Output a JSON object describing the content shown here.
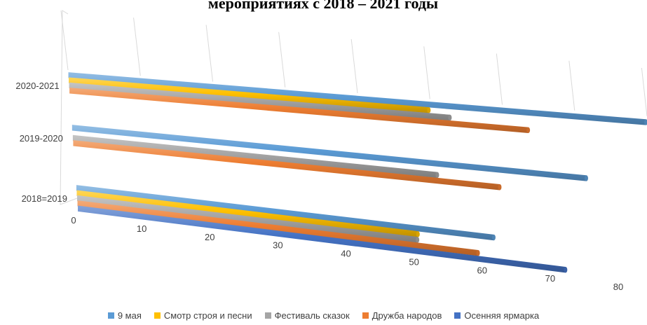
{
  "chart_data": {
    "type": "bar",
    "orientation": "horizontal",
    "title": "мероприятиях с 2018 – 2021 годы",
    "categories": [
      "2020-2021",
      "2019-2020",
      "2018=2019"
    ],
    "xlim": [
      0,
      80
    ],
    "x_ticks": [
      "0",
      "10",
      "20",
      "30",
      "40",
      "50",
      "60",
      "70",
      "80"
    ],
    "grid": true,
    "legend_position": "bottom",
    "series": [
      {
        "name": "9 мая",
        "color": "#5B9BD5",
        "values": [
          80,
          73,
          61
        ]
      },
      {
        "name": "Смотр строя и песни",
        "color": "#FFC000",
        "values": [
          50,
          null,
          50
        ]
      },
      {
        "name": "Фестиваль сказок",
        "color": "#A5A5A5",
        "values": [
          53,
          52,
          50
        ]
      },
      {
        "name": "Дружба народов",
        "color": "#ED7D31",
        "values": [
          64,
          61,
          59
        ]
      },
      {
        "name": "Осенняя ярмарка",
        "color": "#4472C4",
        "values": [
          null,
          null,
          72
        ]
      }
    ]
  }
}
